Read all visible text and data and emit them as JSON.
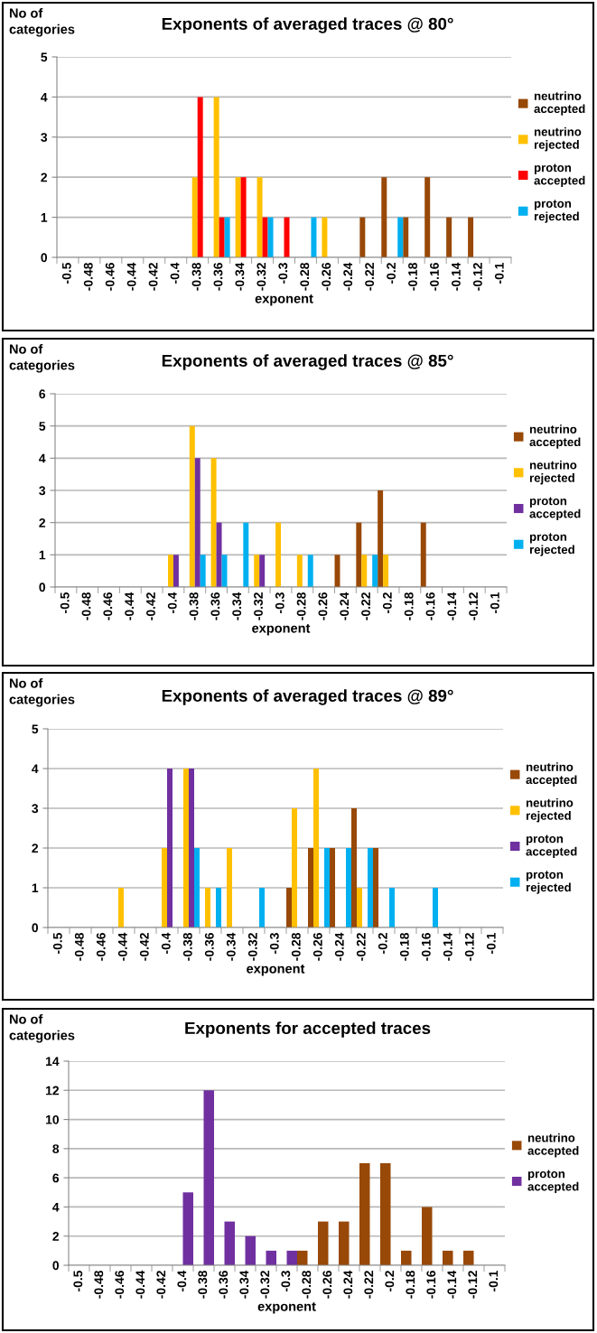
{
  "chart_data": [
    {
      "type": "bar",
      "title": "Exponents of averaged traces @ 80°",
      "xlabel": "exponent",
      "ylabel": "No of\ncategories",
      "categories": [
        "-0.5",
        "-0.48",
        "-0.46",
        "-0.44",
        "-0.42",
        "-0.4",
        "-0.38",
        "-0.36",
        "-0.34",
        "-0.32",
        "-0.3",
        "-0.28",
        "-0.26",
        "-0.24",
        "-0.22",
        "-0.2",
        "-0.18",
        "-0.16",
        "-0.14",
        "-0.12",
        "-0.1"
      ],
      "series": [
        {
          "name": "neutrino\naccepted",
          "color": "#984807",
          "values": [
            0,
            0,
            0,
            0,
            0,
            0,
            0,
            0,
            0,
            0,
            0,
            0,
            0,
            0,
            1,
            2,
            1,
            2,
            1,
            1,
            0
          ]
        },
        {
          "name": "neutrino\nrejected",
          "color": "#ffc000",
          "values": [
            0,
            0,
            0,
            0,
            0,
            0,
            2,
            4,
            2,
            2,
            0,
            0,
            1,
            0,
            0,
            0,
            0,
            0,
            0,
            0,
            0
          ]
        },
        {
          "name": "proton\naccepted",
          "color": "#ff0000",
          "values": [
            0,
            0,
            0,
            0,
            0,
            0,
            4,
            1,
            2,
            1,
            1,
            0,
            0,
            0,
            0,
            0,
            0,
            0,
            0,
            0,
            0
          ]
        },
        {
          "name": "proton\nrejected",
          "color": "#00b0f0",
          "values": [
            0,
            0,
            0,
            0,
            0,
            0,
            0,
            1,
            0,
            1,
            0,
            1,
            0,
            0,
            0,
            1,
            0,
            0,
            0,
            0,
            0
          ]
        }
      ],
      "ylim": [
        0,
        5
      ],
      "yticks": [
        0,
        1,
        2,
        3,
        4,
        5
      ],
      "grid": "y",
      "legend": "right"
    },
    {
      "type": "bar",
      "title": "Exponents of averaged traces @ 85°",
      "xlabel": "exponent",
      "ylabel": "No of\ncategories",
      "categories": [
        "-0.5",
        "-0.48",
        "-0.46",
        "-0.44",
        "-0.42",
        "-0.4",
        "-0.38",
        "-0.36",
        "-0.34",
        "-0.32",
        "-0.3",
        "-0.28",
        "-0.26",
        "-0.24",
        "-0.22",
        "-0.2",
        "-0.18",
        "-0.16",
        "-0.14",
        "-0.12",
        "-0.1"
      ],
      "series": [
        {
          "name": "neutrino\naccepted",
          "color": "#984807",
          "values": [
            0,
            0,
            0,
            0,
            0,
            0,
            0,
            0,
            0,
            0,
            0,
            0,
            0,
            1,
            2,
            3,
            0,
            2,
            0,
            0,
            0
          ]
        },
        {
          "name": "neutrino\nrejected",
          "color": "#ffc000",
          "values": [
            0,
            0,
            0,
            0,
            0,
            1,
            5,
            4,
            0,
            1,
            2,
            1,
            0,
            0,
            1,
            1,
            0,
            0,
            0,
            0,
            0
          ]
        },
        {
          "name": "proton\naccepted",
          "color": "#7030a0",
          "values": [
            0,
            0,
            0,
            0,
            0,
            1,
            4,
            2,
            0,
            1,
            0,
            0,
            0,
            0,
            0,
            0,
            0,
            0,
            0,
            0,
            0
          ]
        },
        {
          "name": "proton\nrejected",
          "color": "#00b0f0",
          "values": [
            0,
            0,
            0,
            0,
            0,
            0,
            1,
            1,
            2,
            0,
            0,
            1,
            0,
            0,
            1,
            0,
            0,
            0,
            0,
            0,
            0
          ]
        }
      ],
      "ylim": [
        0,
        6
      ],
      "yticks": [
        0,
        1,
        2,
        3,
        4,
        5,
        6
      ],
      "grid": "y",
      "legend": "right"
    },
    {
      "type": "bar",
      "title": "Exponents of averaged traces @ 89°",
      "xlabel": "exponent",
      "ylabel": "No of\ncategories",
      "categories": [
        "-0.5",
        "-0.48",
        "-0.46",
        "-0.44",
        "-0.42",
        "-0.4",
        "-0.38",
        "-0.36",
        "-0.34",
        "-0.32",
        "-0.3",
        "-0.28",
        "-0.26",
        "-0.24",
        "-0.22",
        "-0.2",
        "-0.18",
        "-0.16",
        "-0.14",
        "-0.12",
        "-0.1"
      ],
      "series": [
        {
          "name": "neutrino\naccepted",
          "color": "#984807",
          "values": [
            0,
            0,
            0,
            0,
            0,
            0,
            0,
            0,
            0,
            0,
            0,
            1,
            2,
            2,
            3,
            2,
            0,
            0,
            0,
            0,
            0
          ]
        },
        {
          "name": "neutrino\nrejected",
          "color": "#ffc000",
          "values": [
            0,
            0,
            0,
            1,
            0,
            2,
            4,
            1,
            2,
            0,
            0,
            3,
            4,
            0,
            1,
            0,
            0,
            0,
            0,
            0,
            0
          ]
        },
        {
          "name": "proton\naccepted",
          "color": "#7030a0",
          "values": [
            0,
            0,
            0,
            0,
            0,
            4,
            4,
            0,
            0,
            0,
            0,
            0,
            0,
            0,
            0,
            0,
            0,
            0,
            0,
            0,
            0
          ]
        },
        {
          "name": "proton\nrejected",
          "color": "#00b0f0",
          "values": [
            0,
            0,
            0,
            0,
            0,
            0,
            2,
            1,
            0,
            1,
            0,
            0,
            2,
            2,
            2,
            1,
            0,
            1,
            0,
            0,
            0
          ]
        }
      ],
      "ylim": [
        0,
        5
      ],
      "yticks": [
        0,
        1,
        2,
        3,
        4,
        5
      ],
      "grid": "y",
      "legend": "right"
    },
    {
      "type": "bar",
      "title": "Exponents for accepted traces",
      "xlabel": "exponent",
      "ylabel": "No of\ncategories",
      "categories": [
        "-0.5",
        "-0.48",
        "-0.46",
        "-0.44",
        "-0.42",
        "-0.4",
        "-0.38",
        "-0.36",
        "-0.34",
        "-0.32",
        "-0.3",
        "-0.28",
        "-0.26",
        "-0.24",
        "-0.22",
        "-0.2",
        "-0.18",
        "-0.16",
        "-0.14",
        "-0.12",
        "-0.1"
      ],
      "series": [
        {
          "name": "neutrino\naccepted",
          "color": "#984807",
          "values": [
            0,
            0,
            0,
            0,
            0,
            0,
            0,
            0,
            0,
            0,
            0,
            1,
            3,
            3,
            7,
            7,
            1,
            4,
            1,
            1,
            0
          ]
        },
        {
          "name": "proton\naccepted",
          "color": "#7030a0",
          "values": [
            0,
            0,
            0,
            0,
            0,
            5,
            12,
            3,
            2,
            1,
            1,
            0,
            0,
            0,
            0,
            0,
            0,
            0,
            0,
            0,
            0
          ]
        }
      ],
      "ylim": [
        0,
        14
      ],
      "yticks": [
        0,
        2,
        4,
        6,
        8,
        10,
        12,
        14
      ],
      "grid": "y",
      "legend": "right"
    }
  ]
}
